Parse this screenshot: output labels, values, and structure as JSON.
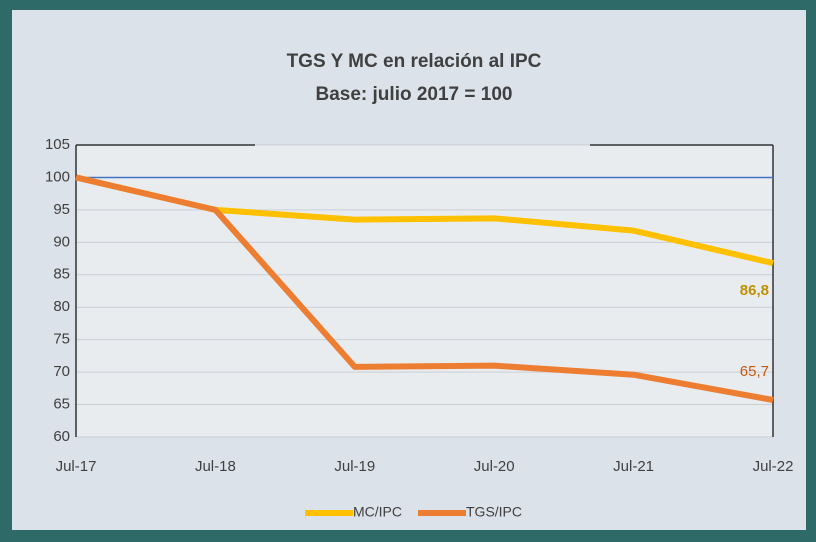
{
  "chart_data": {
    "type": "line",
    "title": "TGS Y MC en relación al IPC",
    "subtitle": "Base: julio 2017 = 100",
    "categories": [
      "Jul-17",
      "Jul-18",
      "Jul-19",
      "Jul-20",
      "Jul-21",
      "Jul-22"
    ],
    "series": [
      {
        "name": "MC/IPC",
        "color": "#ffc000",
        "values": [
          100,
          95,
          93.5,
          93.7,
          91.8,
          86.8
        ],
        "value_labels": [
          null,
          null,
          null,
          null,
          null,
          "86,8"
        ],
        "label_color": "#bf9000"
      },
      {
        "name": "TGS/IPC",
        "color": "#ed7d31",
        "values": [
          100,
          95,
          70.8,
          71,
          69.6,
          65.7
        ],
        "value_labels": [
          null,
          null,
          null,
          null,
          null,
          "65,7"
        ],
        "label_color": "#c55a11"
      }
    ],
    "reference_line": {
      "value": 100,
      "color": "#4472c4"
    },
    "ylim": [
      60,
      105
    ],
    "yticks": [
      60,
      65,
      70,
      75,
      80,
      85,
      90,
      95,
      100,
      105
    ],
    "grid": true,
    "legend": "bottom"
  }
}
